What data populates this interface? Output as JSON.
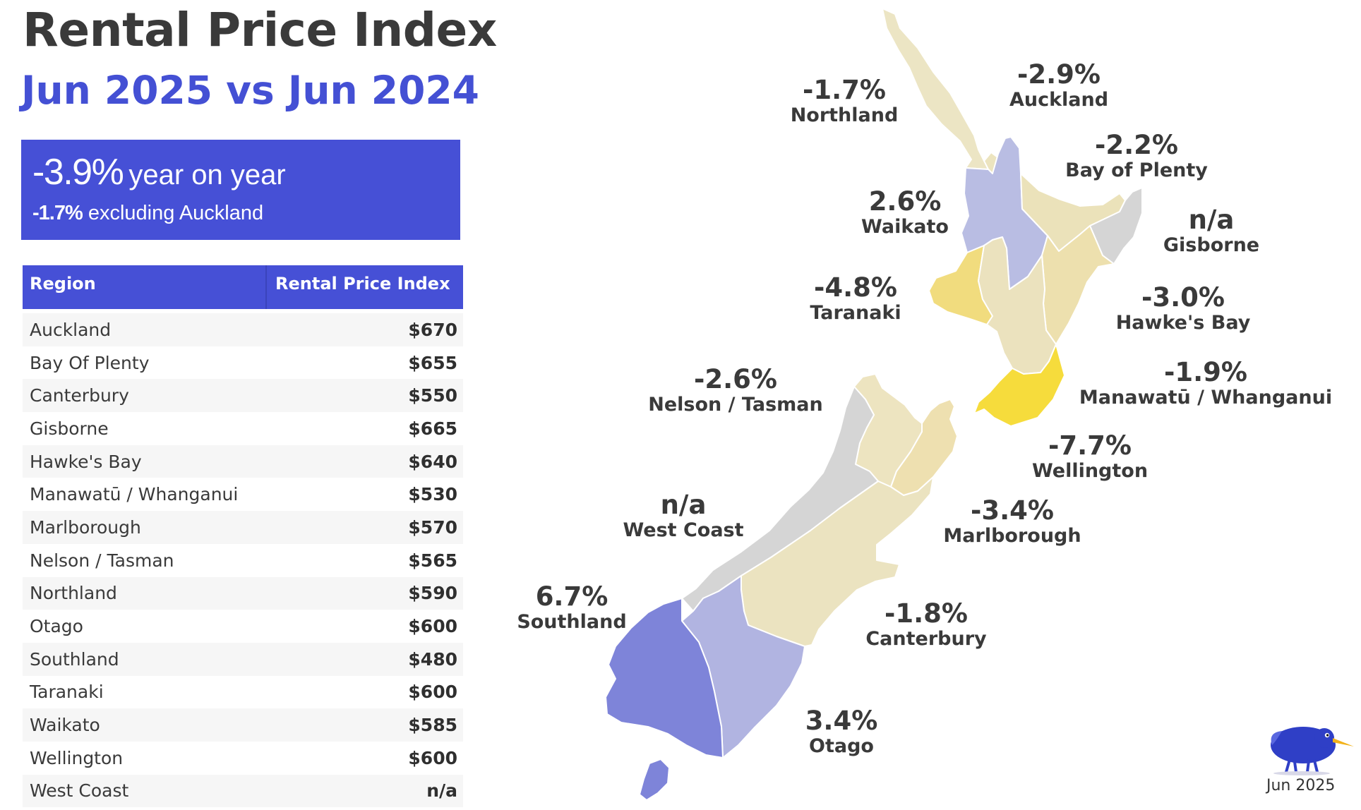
{
  "header": {
    "title": "Rental Price Index",
    "subtitle": "Jun 2025 vs Jun 2024"
  },
  "summary": {
    "national_change": "-3.9%",
    "national_label": "year on year",
    "excluding_change": "-1.7%",
    "excluding_label": "excluding Auckland"
  },
  "table": {
    "columns": [
      "Region",
      "Rental Price Index"
    ],
    "rows": [
      {
        "region": "Auckland",
        "value": "$670"
      },
      {
        "region": "Bay Of Plenty",
        "value": "$655"
      },
      {
        "region": "Canterbury",
        "value": "$550"
      },
      {
        "region": "Gisborne",
        "value": "$665"
      },
      {
        "region": "Hawke's Bay",
        "value": "$640"
      },
      {
        "region": "Manawatū / Whanganui",
        "value": "$530"
      },
      {
        "region": "Marlborough",
        "value": "$570"
      },
      {
        "region": "Nelson / Tasman",
        "value": "$565"
      },
      {
        "region": "Northland",
        "value": "$590"
      },
      {
        "region": "Otago",
        "value": "$600"
      },
      {
        "region": "Southland",
        "value": "$480"
      },
      {
        "region": "Taranaki",
        "value": "$600"
      },
      {
        "region": "Waikato",
        "value": "$585"
      },
      {
        "region": "Wellington",
        "value": "$600"
      },
      {
        "region": "West Coast",
        "value": "n/a"
      }
    ]
  },
  "map": {
    "regions": [
      {
        "id": "northland",
        "name": "Northland",
        "change": "-1.7%",
        "color": "#ece5c4"
      },
      {
        "id": "auckland",
        "name": "Auckland",
        "change": "-2.9%",
        "color": "#ece4bf"
      },
      {
        "id": "waikato",
        "name": "Waikato",
        "change": "2.6%",
        "color": "#b9bde3"
      },
      {
        "id": "bay-of-plenty",
        "name": "Bay of Plenty",
        "change": "-2.2%",
        "color": "#ebe2ba"
      },
      {
        "id": "gisborne",
        "name": "Gisborne",
        "change": "n/a",
        "color": "#d5d5d5"
      },
      {
        "id": "taranaki",
        "name": "Taranaki",
        "change": "-4.8%",
        "color": "#f1dc7e"
      },
      {
        "id": "hawkes-bay",
        "name": "Hawke's Bay",
        "change": "-3.0%",
        "color": "#ede0ae"
      },
      {
        "id": "manawatu",
        "name": "Manawatū / Whanganui",
        "change": "-1.9%",
        "color": "#ebe2be"
      },
      {
        "id": "wellington",
        "name": "Wellington",
        "change": "-7.7%",
        "color": "#f6dc3c"
      },
      {
        "id": "nelson-tasman",
        "name": "Nelson / Tasman",
        "change": "-2.6%",
        "color": "#ede4c0"
      },
      {
        "id": "marlborough",
        "name": "Marlborough",
        "change": "-3.4%",
        "color": "#eee0b0"
      },
      {
        "id": "west-coast",
        "name": "West Coast",
        "change": "n/a",
        "color": "#d5d5d5"
      },
      {
        "id": "canterbury",
        "name": "Canterbury",
        "change": "-1.8%",
        "color": "#ebe3c0"
      },
      {
        "id": "otago",
        "name": "Otago",
        "change": "3.4%",
        "color": "#b1b4e1"
      },
      {
        "id": "southland",
        "name": "Southland",
        "change": "6.7%",
        "color": "#7e84d9"
      }
    ]
  },
  "footer": {
    "date": "Jun 2025",
    "logo_icon": "kiwi-bird-icon"
  }
}
